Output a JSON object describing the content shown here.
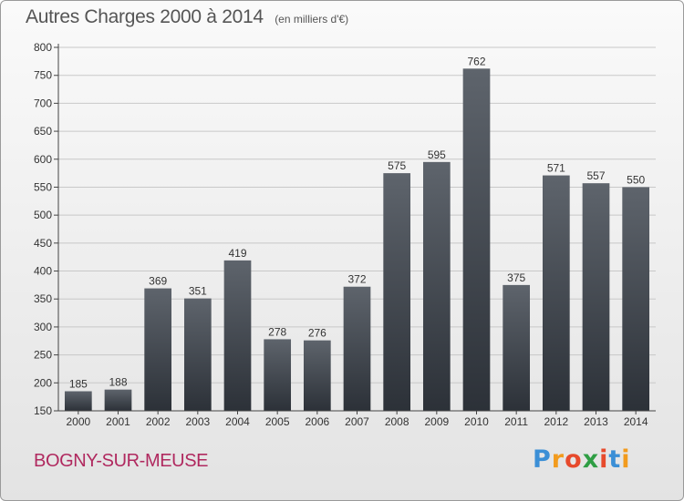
{
  "header": {
    "title": "Autres Charges 2000 à 2014",
    "unit": "(en milliers d'€)"
  },
  "footer": {
    "city": "BOGNY-SUR-MEUSE",
    "logo_text": "Proxiti"
  },
  "colors": {
    "bar_top": "#5e646c",
    "bar_bottom": "#2c3138",
    "city": "#b0295f",
    "text": "#555555",
    "grid": "#c8c8c8"
  },
  "chart_data": {
    "type": "bar",
    "title": "Autres Charges 2000 à 2014",
    "subtitle": "(en milliers d'€)",
    "categories": [
      "2000",
      "2001",
      "2002",
      "2003",
      "2004",
      "2005",
      "2006",
      "2007",
      "2008",
      "2009",
      "2010",
      "2011",
      "2012",
      "2013",
      "2014"
    ],
    "values": [
      185,
      188,
      369,
      351,
      419,
      278,
      276,
      372,
      575,
      595,
      762,
      375,
      571,
      557,
      550
    ],
    "ylim": [
      150,
      800
    ],
    "yticks": [
      150,
      200,
      250,
      300,
      350,
      400,
      450,
      500,
      550,
      600,
      650,
      700,
      750,
      800
    ],
    "grid": true,
    "data_labels": true
  }
}
